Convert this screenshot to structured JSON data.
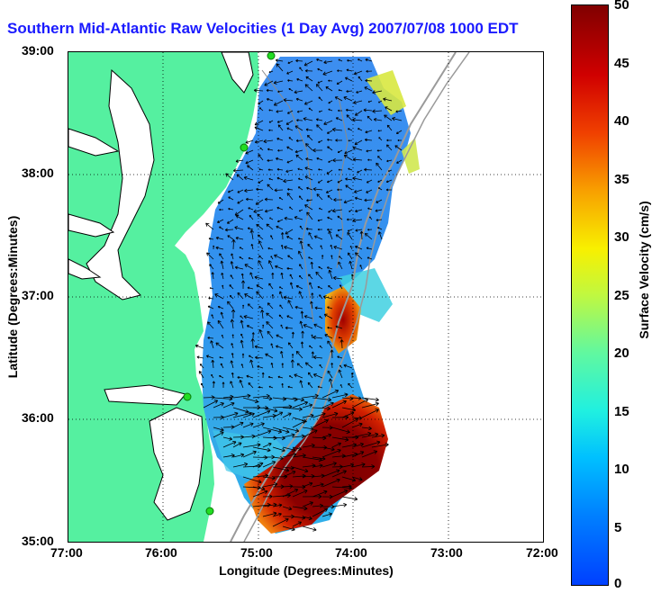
{
  "title": "Southern Mid-Atlantic Raw Velocities (1 Day Avg) 2007/07/08 1000 EDT",
  "axes": {
    "xlabel": "Longitude (Degrees:Minutes)",
    "ylabel": "Latitude (Degrees:Minutes)",
    "xticks": [
      "77:00",
      "76:00",
      "75:00",
      "74:00",
      "73:00",
      "72:00"
    ],
    "yticks": [
      "39:00",
      "38:00",
      "37:00",
      "36:00",
      "35:00"
    ],
    "xlim": [
      -77,
      -72
    ],
    "ylim": [
      35,
      39
    ],
    "grid": "dotted"
  },
  "colorbar": {
    "label": "Surface Velocity (cm/s)",
    "ticks": [
      "50",
      "45",
      "40",
      "35",
      "30",
      "25",
      "20",
      "15",
      "10",
      "5",
      "0"
    ],
    "range": [
      0,
      50
    ],
    "colormap": "jet"
  },
  "colors": {
    "land": "#55f0a0",
    "title": "#1a1aff",
    "station": "#22dd22"
  },
  "map_features": {
    "land": "Delmarva Peninsula, Virginia and North Carolina coast",
    "stations": "HF radar sites (green dots)",
    "vectors": "current vectors (black arrows)",
    "bathymetry": "gray contour lines"
  }
}
